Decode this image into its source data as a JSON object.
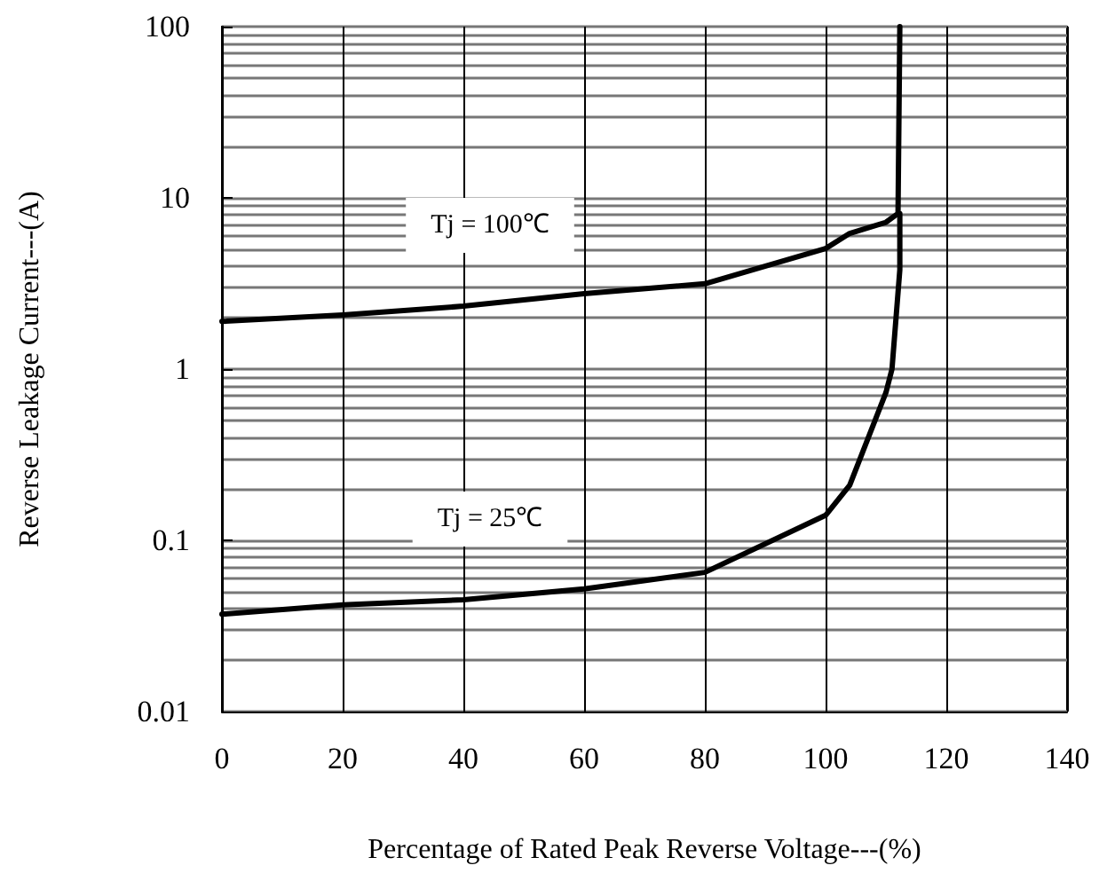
{
  "chart_data": {
    "type": "line",
    "xlabel": "Percentage of Rated Peak Reverse Voltage---(%)",
    "ylabel": "Reverse Leakage Current---(A)",
    "series": [
      {
        "name": "Tj = 100℃",
        "color": "#000000",
        "x": [
          0,
          20,
          40,
          60,
          80,
          100,
          104,
          110,
          112,
          112.3
        ],
        "values": [
          1.9,
          2.07,
          2.33,
          2.76,
          3.15,
          5.06,
          6.2,
          7.2,
          8.1,
          100
        ]
      },
      {
        "name": "Tj = 25℃",
        "color": "#000000",
        "x": [
          0,
          20,
          40,
          60,
          80,
          100,
          104,
          110,
          111,
          112.3,
          112.3
        ],
        "values": [
          0.037,
          0.042,
          0.045,
          0.052,
          0.065,
          0.14,
          0.21,
          0.73,
          1,
          3.8,
          8.1
        ]
      }
    ],
    "xlim": [
      0,
      140
    ],
    "xticks": [
      0,
      20,
      40,
      60,
      80,
      100,
      120,
      140
    ],
    "ylim": [
      0.01,
      100
    ],
    "yticks": [
      0.01,
      0.1,
      1,
      10,
      100
    ],
    "log": "y",
    "grid": true,
    "legend": false,
    "line_style": "solid"
  }
}
